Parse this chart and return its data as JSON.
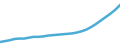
{
  "line_color": "#4BACD6",
  "linewidth": 1.8,
  "background_color": "#ffffff",
  "x": [
    0,
    1,
    2,
    3,
    4,
    5,
    6,
    7,
    8,
    9,
    10,
    11,
    12,
    13,
    14,
    15,
    16,
    17,
    18,
    19,
    20,
    21,
    22,
    23,
    24,
    25
  ],
  "y": [
    0.02,
    0.04,
    0.06,
    0.09,
    0.1,
    0.1,
    0.12,
    0.14,
    0.14,
    0.15,
    0.17,
    0.18,
    0.19,
    0.2,
    0.21,
    0.22,
    0.24,
    0.27,
    0.31,
    0.37,
    0.44,
    0.52,
    0.6,
    0.68,
    0.77,
    0.88
  ]
}
